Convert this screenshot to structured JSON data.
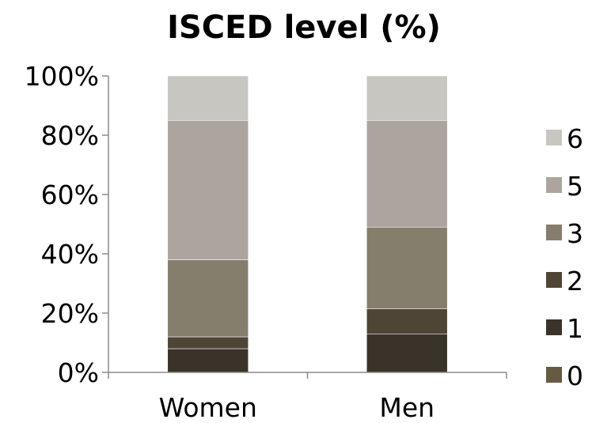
{
  "chart_data": {
    "type": "bar",
    "stacked": true,
    "title": "ISCED level (%)",
    "xlabel": "",
    "ylabel": "",
    "categories": [
      "Women",
      "Men"
    ],
    "ylim": [
      0,
      100
    ],
    "yticks": [
      "0%",
      "20%",
      "40%",
      "60%",
      "80%",
      "100%"
    ],
    "series": [
      {
        "name": "0",
        "color": "#675a45",
        "values": [
          0,
          0
        ]
      },
      {
        "name": "1",
        "color": "#39332a",
        "values": [
          8,
          13
        ]
      },
      {
        "name": "2",
        "color": "#4e4535",
        "values": [
          4,
          8.5
        ]
      },
      {
        "name": "3",
        "color": "#857e6c",
        "values": [
          26,
          27.5
        ]
      },
      {
        "name": "5",
        "color": "#aba59e",
        "values": [
          47,
          36
        ]
      },
      {
        "name": "6",
        "color": "#c8c6c1",
        "values": [
          15,
          15
        ]
      }
    ],
    "legend": "right",
    "grid": false
  }
}
